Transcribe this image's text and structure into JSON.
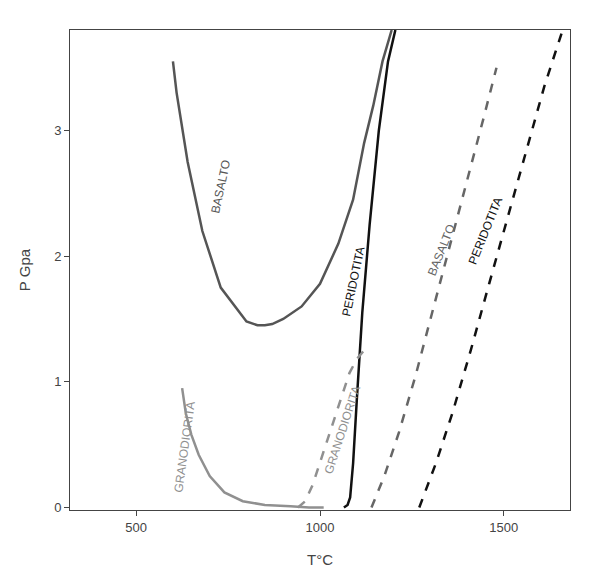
{
  "chart_data": {
    "type": "line",
    "xlabel": "T°C",
    "ylabel": "P Gpa",
    "xlim": [
      320,
      1680
    ],
    "ylim": [
      -0.02,
      3.8
    ],
    "xticks": [
      500,
      1000,
      1500
    ],
    "yticks": [
      0,
      1,
      2,
      3
    ],
    "grid": false,
    "series": [
      {
        "color": "#909090",
        "line_style": "solid",
        "x": [
          625,
          627,
          635,
          650,
          670,
          700,
          740,
          790,
          850,
          920,
          970,
          1000,
          1010
        ],
        "values": [
          0.95,
          0.9,
          0.75,
          0.58,
          0.42,
          0.25,
          0.12,
          0.05,
          0.02,
          0.01,
          0.0,
          0.0,
          0.0
        ]
      },
      {
        "color": "#555555",
        "line_style": "solid",
        "x": [
          600,
          610,
          640,
          680,
          730,
          800,
          830,
          850,
          870,
          900,
          950,
          1000,
          1050,
          1090,
          1120,
          1145,
          1170,
          1195
        ],
        "values": [
          3.55,
          3.3,
          2.75,
          2.2,
          1.75,
          1.48,
          1.45,
          1.45,
          1.46,
          1.5,
          1.6,
          1.78,
          2.1,
          2.45,
          2.9,
          3.2,
          3.55,
          3.8
        ]
      },
      {
        "color": "#111111",
        "line_style": "solid",
        "x": [
          1065,
          1075,
          1082,
          1090,
          1100,
          1115,
          1135,
          1160,
          1185,
          1205
        ],
        "values": [
          0.0,
          0.02,
          0.08,
          0.35,
          0.85,
          1.55,
          2.25,
          3.0,
          3.55,
          3.8
        ]
      },
      {
        "color": "#909090",
        "line_style": "dashed",
        "x": [
          940,
          960,
          980,
          1010,
          1040,
          1060,
          1080,
          1100,
          1115,
          1125
        ],
        "values": [
          0.0,
          0.05,
          0.18,
          0.45,
          0.72,
          0.9,
          1.07,
          1.18,
          1.24,
          1.27
        ]
      },
      {
        "color": "#666666",
        "line_style": "dashed",
        "x": [
          1140,
          1175,
          1215,
          1260,
          1305,
          1355,
          1400,
          1445,
          1480
        ],
        "values": [
          0.0,
          0.25,
          0.6,
          1.05,
          1.55,
          2.1,
          2.6,
          3.1,
          3.5
        ]
      },
      {
        "color": "#111111",
        "line_style": "dashed",
        "x": [
          1270,
          1315,
          1360,
          1410,
          1460,
          1510,
          1560,
          1610,
          1660
        ],
        "values": [
          0.0,
          0.35,
          0.75,
          1.25,
          1.78,
          2.3,
          2.82,
          3.35,
          3.8
        ]
      }
    ],
    "annotations": [
      {
        "text": "BASALTO",
        "x": 730,
        "y": 2.55,
        "color": "#555555"
      },
      {
        "text": "GRANODIORITA",
        "x": 632,
        "y": 0.48,
        "color": "#909090"
      },
      {
        "text": "PERIDOTITA",
        "x": 1092,
        "y": 1.8,
        "color": "#111111"
      },
      {
        "text": "GRANODIORITA",
        "x": 1060,
        "y": 0.62,
        "color": "#909090"
      },
      {
        "text": "BASALTO",
        "x": 1330,
        "y": 2.05,
        "color": "#666666"
      },
      {
        "text": "PERIDOTITA",
        "x": 1450,
        "y": 2.2,
        "color": "#111111"
      }
    ]
  }
}
